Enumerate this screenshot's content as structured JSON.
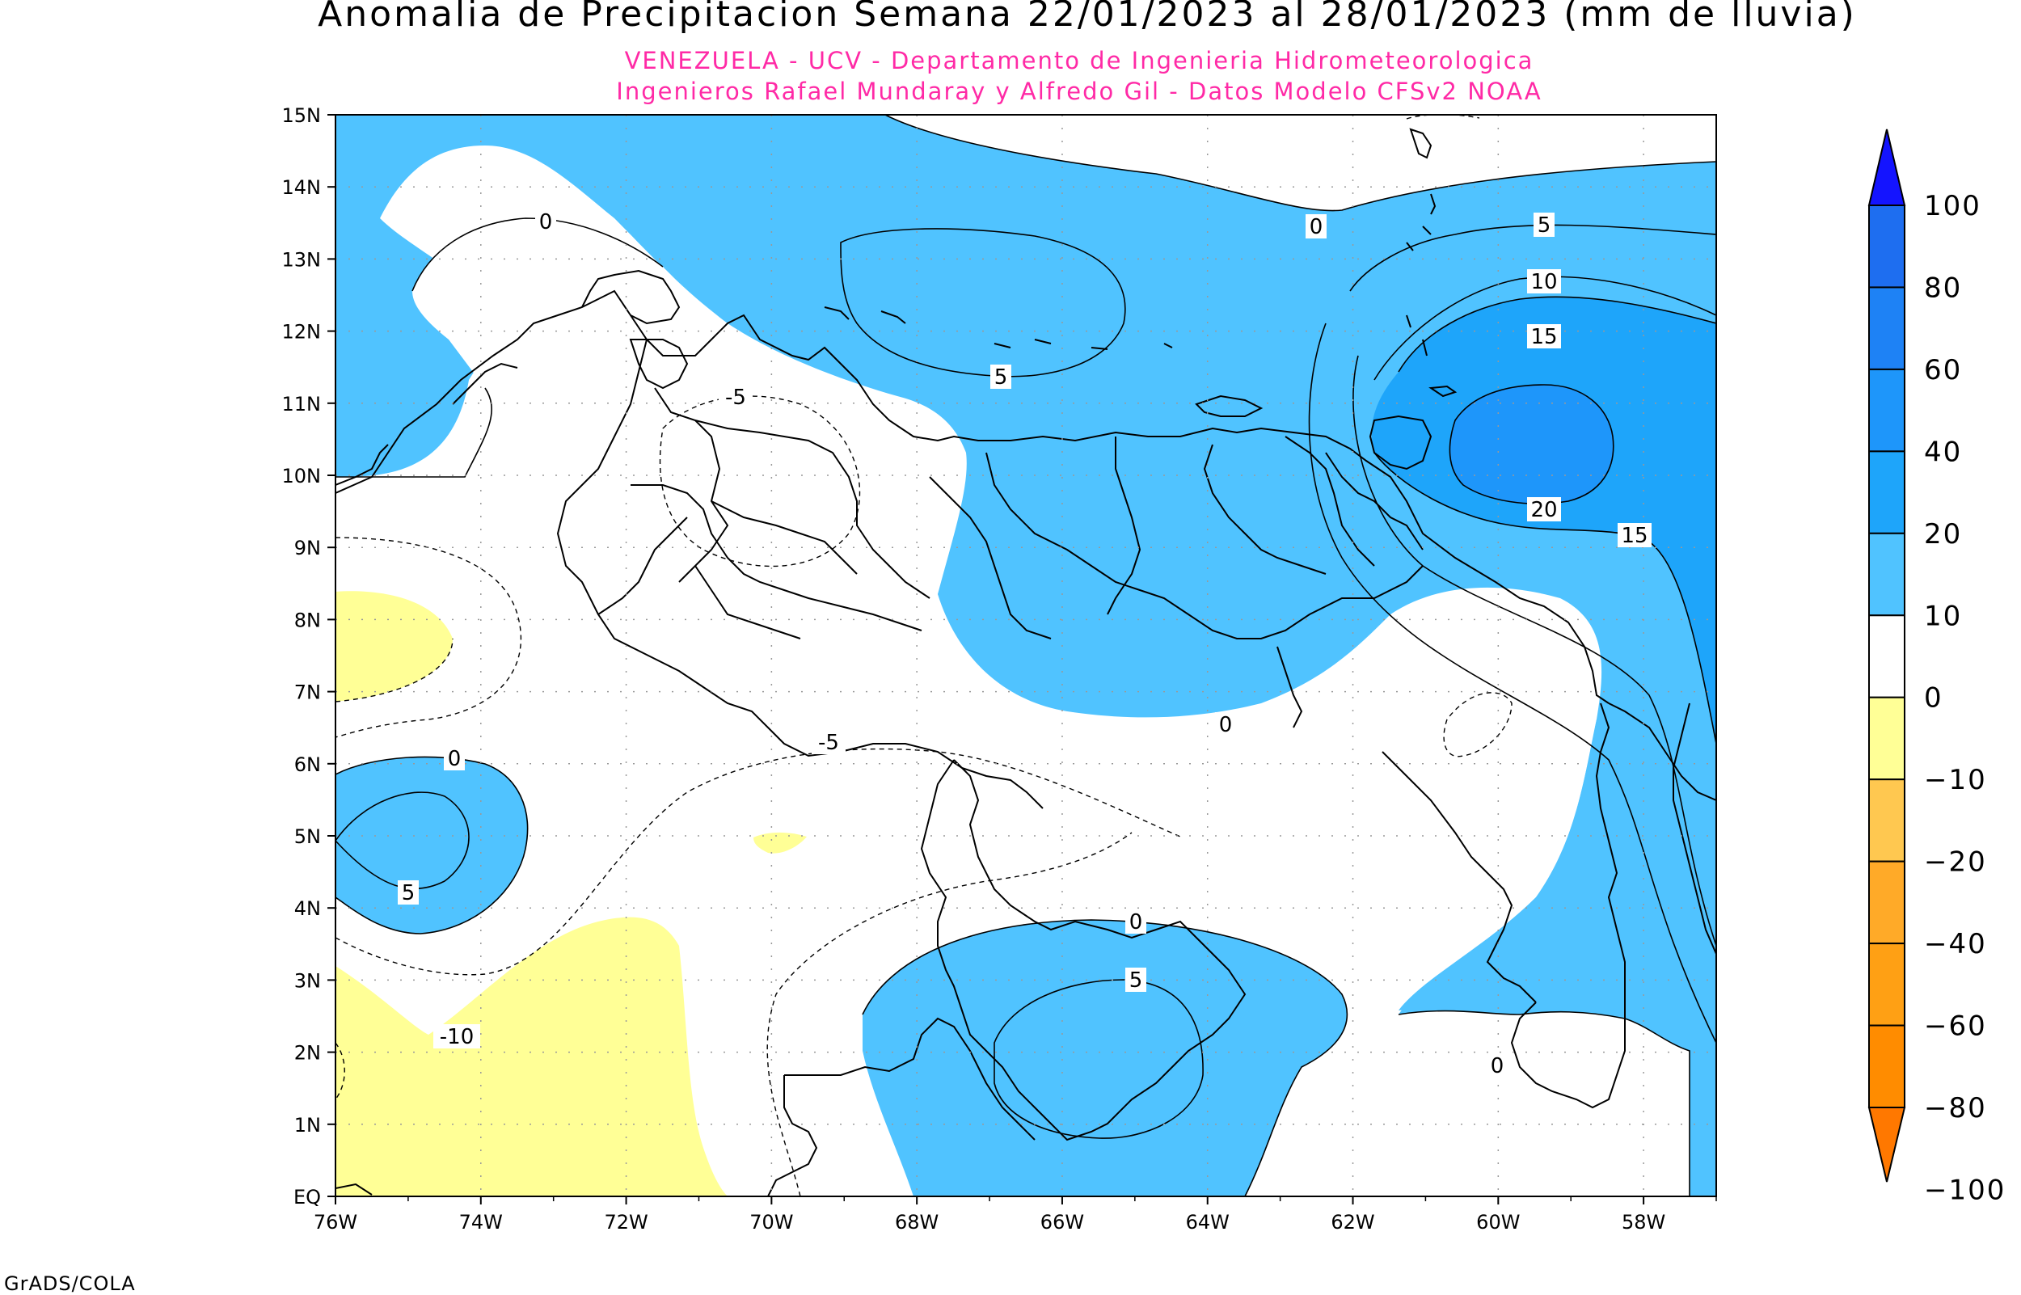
{
  "title": "Anomalia de Precipitacion Semana 22/01/2023 al 28/01/2023 (mm de lluvia)",
  "subtitle_line1": "VENEZUELA - UCV - Departamento de Ingenieria Hidrometeorologica",
  "subtitle_line2": "Ingenieros Rafael Mundaray y Alfredo Gil - Datos Modelo CFSv2 NOAA",
  "credit": "GrADS/COLA",
  "axes": {
    "x_ticks": [
      "76W",
      "74W",
      "72W",
      "70W",
      "68W",
      "66W",
      "64W",
      "62W",
      "60W",
      "58W"
    ],
    "y_ticks": [
      "EQ",
      "1N",
      "2N",
      "3N",
      "4N",
      "5N",
      "6N",
      "7N",
      "8N",
      "9N",
      "10N",
      "11N",
      "12N",
      "13N",
      "14N",
      "15N"
    ],
    "lon_range": [
      -76,
      -57
    ],
    "lat_range": [
      0,
      15
    ]
  },
  "colorbar": {
    "labels": [
      "100",
      "80",
      "60",
      "40",
      "20",
      "10",
      "0",
      "-10",
      "-20",
      "-40",
      "-60",
      "-80",
      "-100"
    ],
    "colors": [
      "#1414ff",
      "#1e6ef0",
      "#1e82f5",
      "#1e96fa",
      "#1ea5fa",
      "#50c3ff",
      "#ffffff",
      "#ffff96",
      "#ffc850",
      "#ffaa28",
      "#ffa014",
      "#ff8c00",
      "#ff7800"
    ]
  },
  "contour_labels": [
    {
      "text": "0"
    },
    {
      "text": "0"
    },
    {
      "text": "5"
    },
    {
      "text": "10"
    },
    {
      "text": "15"
    },
    {
      "text": "20"
    },
    {
      "text": "15"
    },
    {
      "text": "5"
    },
    {
      "text": "0"
    },
    {
      "text": "5"
    },
    {
      "text": "-5"
    },
    {
      "text": "-5"
    },
    {
      "text": "-10"
    },
    {
      "text": "0"
    },
    {
      "text": "5"
    },
    {
      "text": "0"
    },
    {
      "text": "0"
    }
  ]
}
